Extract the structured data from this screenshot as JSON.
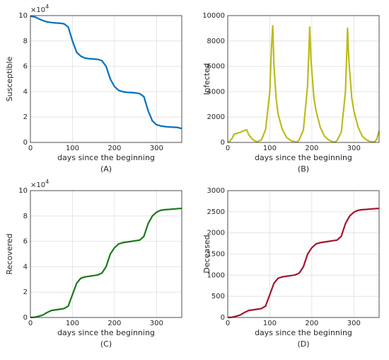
{
  "chart_data": [
    {
      "type": "line",
      "ylabel": "Susceptible",
      "xlabel": "days since the beginning",
      "caption": "(A)",
      "y_offset_text": [
        "×10",
        "4"
      ],
      "color": "#0072bd",
      "xlim": [
        0,
        360
      ],
      "xticks": [
        0,
        100,
        200,
        300
      ],
      "ylim": [
        0,
        10
      ],
      "yticks": [
        0,
        2,
        4,
        6,
        8,
        10
      ],
      "grid": true,
      "x": [
        0,
        10,
        20,
        30,
        40,
        50,
        60,
        70,
        80,
        90,
        100,
        110,
        120,
        130,
        140,
        150,
        160,
        170,
        180,
        190,
        200,
        210,
        220,
        230,
        240,
        250,
        260,
        270,
        280,
        290,
        300,
        310,
        320,
        330,
        340,
        350,
        360
      ],
      "values": [
        9.95,
        9.9,
        9.75,
        9.6,
        9.5,
        9.45,
        9.42,
        9.4,
        9.35,
        9.1,
        8.0,
        7.1,
        6.8,
        6.65,
        6.6,
        6.58,
        6.55,
        6.45,
        6.0,
        5.0,
        4.4,
        4.1,
        4.0,
        3.95,
        3.93,
        3.9,
        3.85,
        3.6,
        2.5,
        1.7,
        1.4,
        1.3,
        1.25,
        1.22,
        1.2,
        1.18,
        1.1
      ]
    },
    {
      "type": "line",
      "ylabel": "Infected",
      "xlabel": "days since the beginning",
      "caption": "(B)",
      "color": "#bdbb1f",
      "xlim": [
        0,
        360
      ],
      "xticks": [
        0,
        100,
        200,
        300
      ],
      "ylim": [
        0,
        10000
      ],
      "yticks": [
        0,
        2000,
        4000,
        6000,
        8000,
        10000
      ],
      "grid": true,
      "x": [
        0,
        5,
        10,
        15,
        20,
        30,
        40,
        45,
        50,
        60,
        70,
        80,
        90,
        100,
        104,
        107,
        110,
        115,
        120,
        130,
        140,
        150,
        160,
        165,
        170,
        180,
        190,
        195,
        198,
        205,
        210,
        220,
        230,
        240,
        250,
        255,
        260,
        270,
        280,
        285,
        288,
        295,
        300,
        310,
        320,
        330,
        340,
        350,
        355,
        360
      ],
      "values": [
        0,
        100,
        300,
        650,
        700,
        800,
        950,
        1000,
        600,
        200,
        50,
        200,
        1000,
        4000,
        7500,
        9200,
        6000,
        3500,
        2200,
        1000,
        400,
        150,
        50,
        30,
        200,
        1000,
        4500,
        9100,
        6500,
        3500,
        2500,
        1200,
        500,
        200,
        50,
        20,
        150,
        800,
        4000,
        9000,
        6500,
        3500,
        2500,
        1200,
        500,
        200,
        60,
        50,
        300,
        900
      ]
    },
    {
      "type": "line",
      "ylabel": "Recovered",
      "xlabel": "days since the beginning",
      "caption": "(C)",
      "y_offset_text": [
        "×10",
        "4"
      ],
      "color": "#1a7a1a",
      "xlim": [
        0,
        360
      ],
      "xticks": [
        0,
        100,
        200,
        300
      ],
      "ylim": [
        0,
        10
      ],
      "yticks": [
        0,
        2,
        4,
        6,
        8,
        10
      ],
      "grid": true,
      "x": [
        0,
        10,
        20,
        30,
        40,
        50,
        60,
        70,
        80,
        90,
        100,
        110,
        120,
        130,
        140,
        150,
        160,
        170,
        180,
        190,
        200,
        210,
        220,
        230,
        240,
        250,
        260,
        270,
        280,
        290,
        300,
        310,
        320,
        330,
        340,
        350,
        360
      ],
      "values": [
        0,
        0.02,
        0.1,
        0.2,
        0.4,
        0.55,
        0.6,
        0.65,
        0.7,
        0.9,
        1.8,
        2.7,
        3.1,
        3.2,
        3.25,
        3.3,
        3.35,
        3.5,
        4.0,
        5.0,
        5.5,
        5.8,
        5.9,
        5.95,
        6.0,
        6.05,
        6.1,
        6.4,
        7.4,
        8.0,
        8.3,
        8.45,
        8.5,
        8.52,
        8.55,
        8.58,
        8.6
      ]
    },
    {
      "type": "line",
      "ylabel": "Deceased",
      "xlabel": "days since the beginning",
      "caption": "(D)",
      "color": "#a2142f",
      "xlim": [
        0,
        360
      ],
      "xticks": [
        0,
        100,
        200,
        300
      ],
      "ylim": [
        0,
        3000
      ],
      "yticks": [
        0,
        500,
        1000,
        1500,
        2000,
        2500,
        3000
      ],
      "grid": true,
      "x": [
        0,
        10,
        20,
        30,
        40,
        50,
        60,
        70,
        80,
        90,
        100,
        110,
        120,
        130,
        140,
        150,
        160,
        170,
        180,
        190,
        200,
        210,
        220,
        230,
        240,
        250,
        260,
        270,
        280,
        290,
        300,
        310,
        320,
        330,
        340,
        350,
        360
      ],
      "values": [
        0,
        5,
        30,
        60,
        120,
        165,
        180,
        195,
        210,
        270,
        540,
        810,
        930,
        960,
        975,
        990,
        1005,
        1050,
        1200,
        1500,
        1650,
        1740,
        1770,
        1785,
        1800,
        1815,
        1830,
        1920,
        2220,
        2400,
        2490,
        2535,
        2550,
        2556,
        2565,
        2574,
        2580
      ]
    }
  ]
}
